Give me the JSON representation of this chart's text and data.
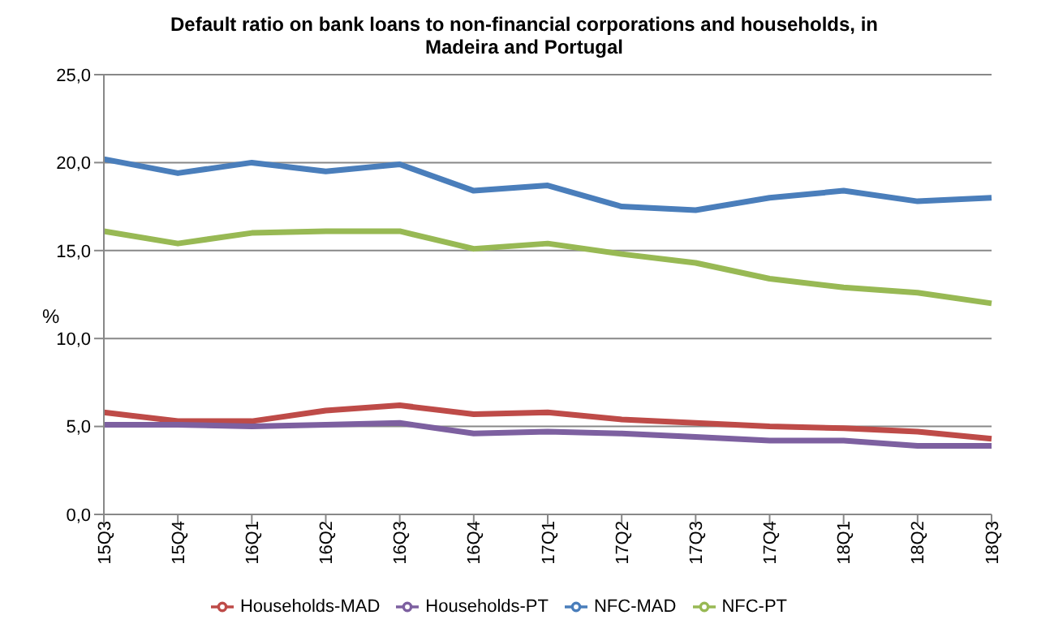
{
  "chart_data": {
    "type": "line",
    "title": "Default ratio on bank loans to non-financial corporations and households,  in Madeira and Portugal",
    "ylabel": "%",
    "categories": [
      "15Q3",
      "15Q4",
      "16Q1",
      "16Q2",
      "16Q3",
      "16Q4",
      "17Q1",
      "17Q2",
      "17Q3",
      "17Q4",
      "18Q1",
      "18Q2",
      "18Q3"
    ],
    "series": [
      {
        "name": "NFC-MAD",
        "color": "#4a7ebb",
        "values": [
          20.2,
          19.4,
          20.0,
          19.5,
          19.9,
          18.4,
          18.7,
          17.5,
          17.3,
          18.0,
          18.4,
          17.8,
          18.0
        ]
      },
      {
        "name": "Households-MAD",
        "color": "#be4b48",
        "values": [
          5.8,
          5.3,
          5.3,
          5.9,
          6.2,
          5.7,
          5.8,
          5.4,
          5.2,
          5.0,
          4.9,
          4.7,
          4.3
        ]
      },
      {
        "name": "NFC-PT",
        "color": "#98b954",
        "values": [
          16.1,
          15.4,
          16.0,
          16.1,
          16.1,
          15.1,
          15.4,
          14.8,
          14.3,
          13.4,
          12.9,
          12.6,
          12.0
        ]
      },
      {
        "name": "Households-PT",
        "color": "#7d60a0",
        "values": [
          5.1,
          5.1,
          5.0,
          5.1,
          5.2,
          4.6,
          4.7,
          4.6,
          4.4,
          4.2,
          4.2,
          3.9,
          3.9
        ]
      }
    ],
    "ylim": [
      0,
      25
    ],
    "yticks": [
      {
        "value": 0,
        "label": "0,0"
      },
      {
        "value": 5,
        "label": "5,0"
      },
      {
        "value": 10,
        "label": "10,0"
      },
      {
        "value": 15,
        "label": "15,0"
      },
      {
        "value": 20,
        "label": "20,0"
      },
      {
        "value": 25,
        "label": "25,0"
      }
    ],
    "grid": "y",
    "legend": "bottom",
    "marker": "none",
    "line_style": "solid"
  }
}
